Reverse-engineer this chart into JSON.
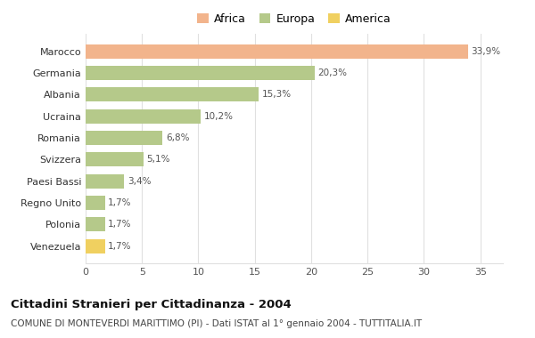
{
  "categories": [
    "Marocco",
    "Germania",
    "Albania",
    "Ucraina",
    "Romania",
    "Svizzera",
    "Paesi Bassi",
    "Regno Unito",
    "Polonia",
    "Venezuela"
  ],
  "values": [
    33.9,
    20.3,
    15.3,
    10.2,
    6.8,
    5.1,
    3.4,
    1.7,
    1.7,
    1.7
  ],
  "labels": [
    "33,9%",
    "20,3%",
    "15,3%",
    "10,2%",
    "6,8%",
    "5,1%",
    "3,4%",
    "1,7%",
    "1,7%",
    "1,7%"
  ],
  "colors": [
    "#F2B48C",
    "#B5C98A",
    "#B5C98A",
    "#B5C98A",
    "#B5C98A",
    "#B5C98A",
    "#B5C98A",
    "#B5C98A",
    "#B5C98A",
    "#F0D060"
  ],
  "legend_labels": [
    "Africa",
    "Europa",
    "America"
  ],
  "legend_colors": [
    "#F2B48C",
    "#B5C98A",
    "#F0D060"
  ],
  "xlim": [
    0,
    37
  ],
  "xticks": [
    0,
    5,
    10,
    15,
    20,
    25,
    30,
    35
  ],
  "title": "Cittadini Stranieri per Cittadinanza - 2004",
  "subtitle": "COMUNE DI MONTEVERDI MARITTIMO (PI) - Dati ISTAT al 1° gennaio 2004 - TUTTITALIA.IT",
  "bg_color": "#ffffff",
  "grid_color": "#e0e0e0"
}
